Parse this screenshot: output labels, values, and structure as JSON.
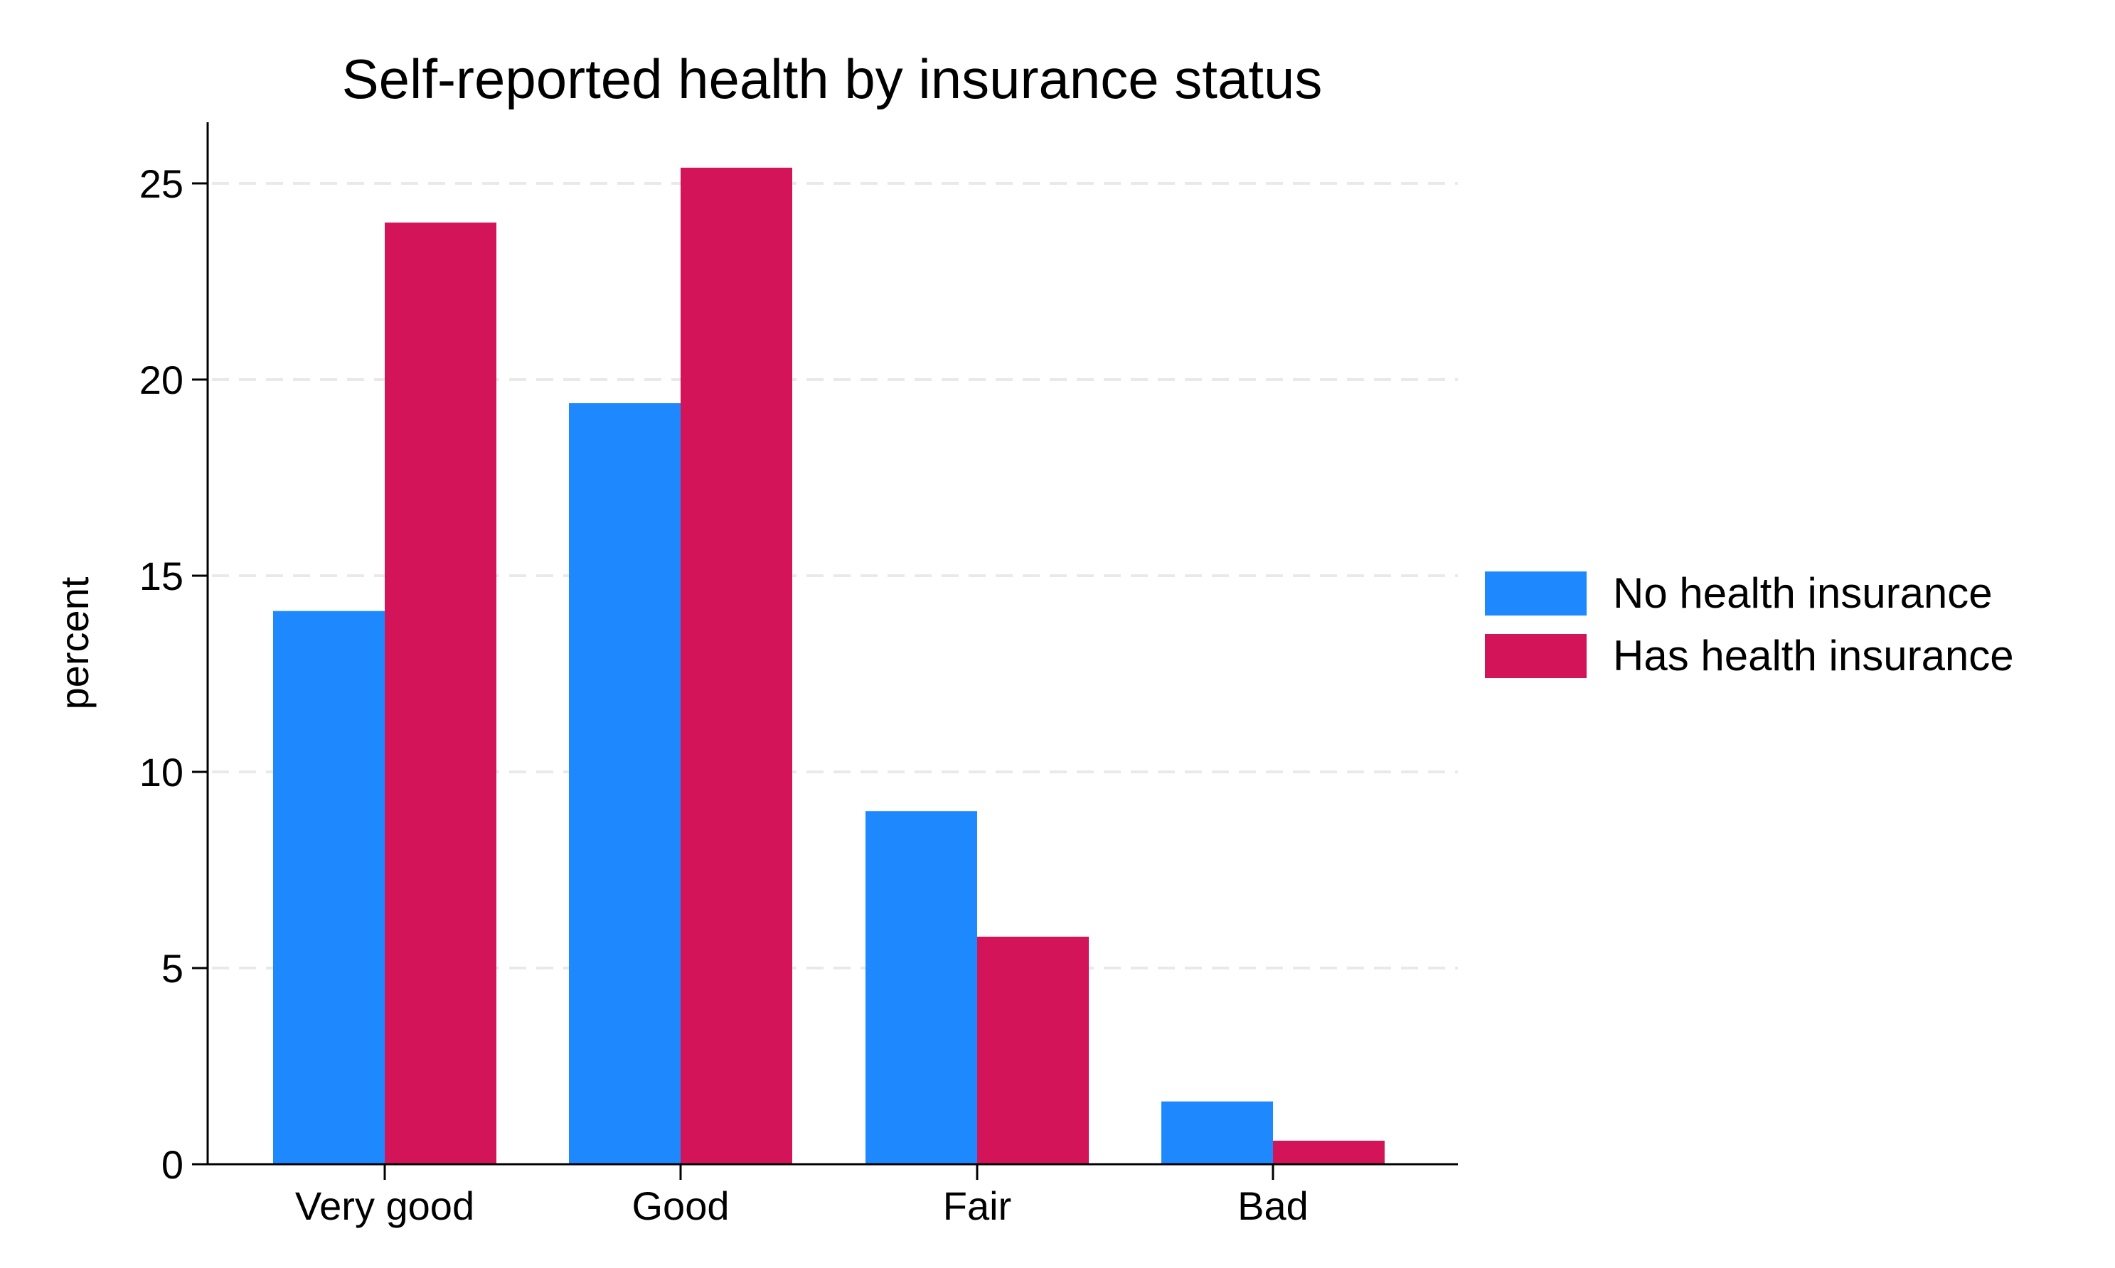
{
  "chart_data": {
    "type": "bar",
    "title": "Self-reported health by insurance status",
    "xlabel": "",
    "ylabel": "percent",
    "categories": [
      "Very good",
      "Good",
      "Fair",
      "Bad"
    ],
    "series": [
      {
        "name": "No health insurance",
        "color": "#1e88ff",
        "values": [
          14.1,
          19.4,
          9.0,
          1.6
        ]
      },
      {
        "name": "Has health insurance",
        "color": "#d41458",
        "values": [
          24.0,
          25.4,
          5.8,
          0.6
        ]
      }
    ],
    "ylim": [
      0,
      26.5
    ],
    "yticks": [
      0,
      5,
      10,
      15,
      20,
      25
    ],
    "grid": true,
    "legend_position": "right"
  }
}
